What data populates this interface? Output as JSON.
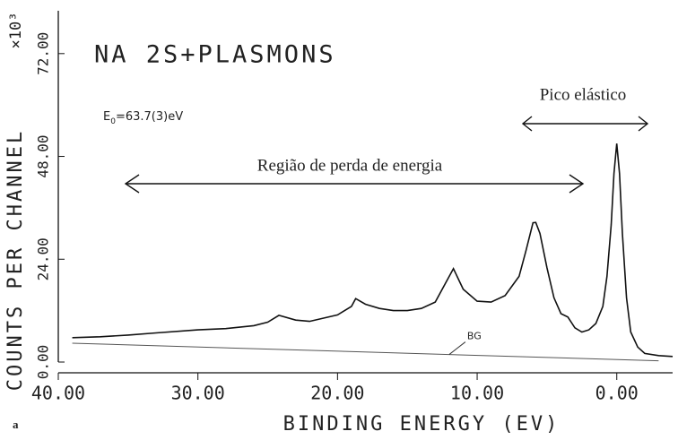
{
  "chart_data": {
    "type": "line",
    "title": "NA 2S+PLASMONS",
    "e0": {
      "symbol": "E",
      "sub": "0",
      "text": "=63.7(3)eV"
    },
    "annotations": [
      "Pico elástico",
      "Região de perda de energia"
    ],
    "panel_label": "a",
    "x_label": "BINDING ENERGY (EV)",
    "y_label": "COUNTS PER CHANNEL",
    "y_multiplier": "×10³",
    "xlim": [
      40,
      -4
    ],
    "ylim": [
      0,
      82
    ],
    "xticks": [
      {
        "value": 40,
        "label": "40.00"
      },
      {
        "value": 30,
        "label": "30.00"
      },
      {
        "value": 20,
        "label": "20.00"
      },
      {
        "value": 10,
        "label": "10.00"
      },
      {
        "value": 0,
        "label": "0.00"
      }
    ],
    "yticks": [
      {
        "value": 0,
        "label": "0.00"
      },
      {
        "value": 24,
        "label": "24.00"
      },
      {
        "value": 48,
        "label": "48.00"
      },
      {
        "value": 72,
        "label": "72.00"
      }
    ],
    "series": [
      {
        "color": "#111111",
        "x": [
          39,
          37,
          35,
          33,
          30,
          28,
          26,
          25,
          24.2,
          23,
          22,
          20,
          19,
          18.7,
          18,
          17,
          16,
          15,
          14,
          13,
          12.5,
          11.7,
          11,
          10,
          9,
          8,
          7,
          6.5,
          6,
          5.8,
          5.5,
          5,
          4.5,
          4,
          3.5,
          3,
          2.5,
          2,
          1.5,
          1,
          0.7,
          0.4,
          0.2,
          0,
          -0.2,
          -0.4,
          -0.7,
          -1,
          -1.5,
          -2,
          -3,
          -4
        ],
        "values": [
          5.7,
          5.9,
          6.3,
          6.8,
          7.5,
          7.8,
          8.5,
          9.3,
          10.9,
          9.8,
          9.5,
          11,
          13,
          14.8,
          13.5,
          12.5,
          12,
          12,
          12.5,
          14,
          17,
          21.8,
          17,
          14.2,
          14,
          15.5,
          20,
          26,
          32.5,
          32.6,
          30,
          22,
          15,
          11.3,
          10.5,
          8,
          7,
          7.5,
          9,
          13,
          20,
          32,
          44,
          51,
          44,
          30,
          15,
          7,
          3.5,
          2,
          1.5,
          1.3
        ]
      },
      {
        "name": "BG",
        "color": "#555555",
        "x": [
          39,
          -3
        ],
        "values": [
          4.4,
          0.3
        ]
      }
    ]
  }
}
